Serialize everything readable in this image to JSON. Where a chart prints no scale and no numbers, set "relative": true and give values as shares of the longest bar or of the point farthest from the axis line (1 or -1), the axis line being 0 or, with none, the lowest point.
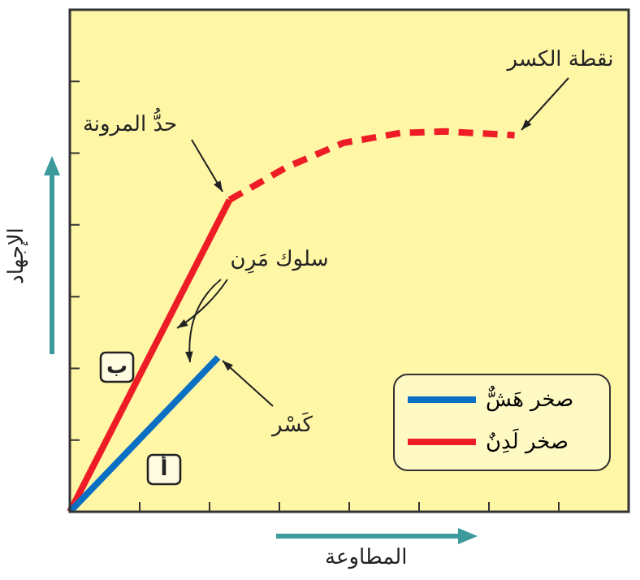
{
  "chart_data": {
    "type": "line",
    "relative": true,
    "xlabel": "المطاوعة",
    "ylabel": "الإجهاد",
    "legend": "bottom right",
    "marker": "none",
    "categories": [
      null,
      null,
      null,
      null,
      null,
      null,
      null,
      null,
      null,
      null,
      null,
      null,
      null,
      null,
      null,
      null,
      null,
      null,
      null,
      null,
      null,
      null,
      null,
      null,
      null,
      null,
      null,
      null,
      null,
      null,
      null,
      null,
      null,
      null,
      null,
      null,
      null,
      null,
      null,
      null,
      null,
      null,
      null,
      null,
      null,
      null,
      null,
      null,
      null,
      null
    ],
    "series": [
      {
        "name": "صخر هَشٌّ",
        "color": "#0b6fc4",
        "values": [
          0,
          null,
          null,
          null,
          null,
          null,
          null,
          null,
          null,
          null,
          null,
          null,
          null,
          0.406,
          null,
          null,
          null,
          null,
          null,
          null,
          null,
          null,
          null,
          null,
          null,
          null,
          null,
          null,
          null,
          null,
          null,
          null,
          null,
          null,
          null,
          null,
          null,
          null,
          null,
          null,
          null,
          null,
          null,
          null,
          null,
          null,
          null,
          null,
          null,
          null
        ]
      },
      {
        "name": "صخر لَدِنٌ",
        "color": "#ee1c25",
        "values": [
          0,
          null,
          null,
          null,
          null,
          null,
          null,
          null,
          null,
          null,
          null,
          null,
          null,
          null,
          0.82,
          null,
          null,
          null,
          null,
          null,
          null,
          null,
          null,
          null,
          null,
          null,
          null,
          null,
          null,
          null,
          null,
          null,
          null,
          null,
          null,
          null,
          null,
          null,
          null,
          null,
          null,
          null,
          null,
          null,
          null,
          null,
          null,
          null,
          null,
          null
        ]
      },
      {
        "color": "#ee1c25",
        "line_style": "dashed",
        "values": [
          null,
          null,
          null,
          null,
          null,
          null,
          null,
          null,
          null,
          null,
          null,
          null,
          null,
          null,
          0.82,
          null,
          null,
          null,
          null,
          0.906,
          null,
          null,
          null,
          null,
          0.97,
          null,
          null,
          null,
          null,
          0.996,
          null,
          null,
          null,
          1,
          null,
          null,
          null,
          null,
          null,
          0.99,
          null,
          null,
          null,
          null,
          null,
          null,
          null,
          null,
          null,
          null
        ]
      }
    ],
    "annotations": [
      "حدُّ المرونة",
      "نقطة الكسر",
      "كَسْر",
      "سلوك مَرِن",
      "ب",
      "أ"
    ]
  }
}
